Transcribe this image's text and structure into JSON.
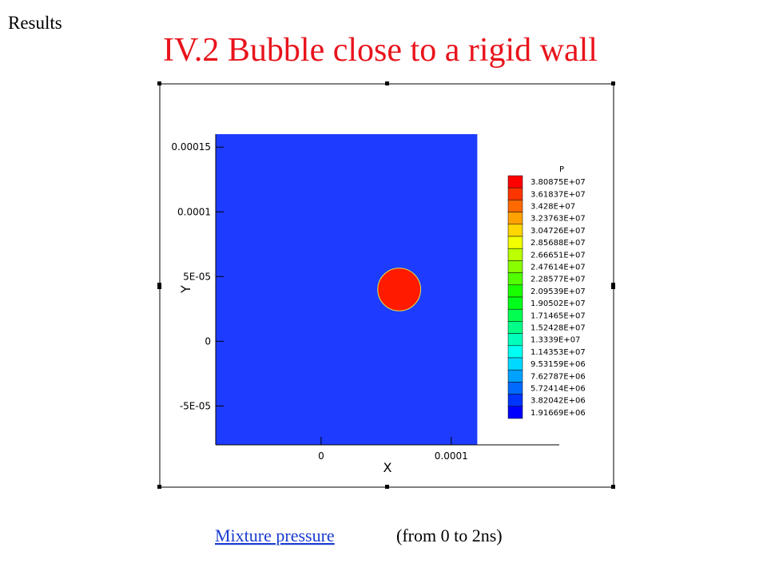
{
  "header": "Results",
  "title": "IV.2 Bubble close to a rigid wall",
  "caption": {
    "link": "Mixture pressure",
    "text": "(from 0 to 2ns)"
  },
  "chart_data": {
    "type": "contour",
    "xlabel": "X",
    "ylabel": "Y",
    "xlim": [
      -8.1e-05,
      0.000183
    ],
    "ylim": [
      -8e-05,
      0.00016
    ],
    "xticks": [
      0,
      0.0001
    ],
    "yticks": [
      {
        "value": -5e-05,
        "label": "-5E-05"
      },
      0,
      {
        "value": 5e-05,
        "label": "5E-05"
      },
      0.0001,
      0.00015
    ],
    "field": {
      "xlim": [
        -8.1e-05,
        0.00012
      ],
      "ylim": [
        -8e-05,
        0.00016
      ],
      "color": "#1e3cff"
    },
    "bubble": {
      "x": 6e-05,
      "y": 4e-05,
      "radius": 1.65e-05,
      "color": "#ff1a00"
    },
    "legend": {
      "title": "P",
      "levels": [
        {
          "value": 38087500,
          "label": "3.80875E+07",
          "color": "#ff0000"
        },
        {
          "value": 36183700,
          "label": "3.61837E+07",
          "color": "#ff3500"
        },
        {
          "value": 34280000,
          "label": "3.428E+07",
          "color": "#ff6a00"
        },
        {
          "value": 32376300,
          "label": "3.23763E+07",
          "color": "#ffa200"
        },
        {
          "value": 30472600,
          "label": "3.04726E+07",
          "color": "#ffd600"
        },
        {
          "value": 28568800,
          "label": "2.85688E+07",
          "color": "#f2ff00"
        },
        {
          "value": 26665100,
          "label": "2.66651E+07",
          "color": "#bbff00"
        },
        {
          "value": 24761400,
          "label": "2.47614E+07",
          "color": "#88ff00"
        },
        {
          "value": 22857700,
          "label": "2.28577E+07",
          "color": "#51ff00"
        },
        {
          "value": 20953900,
          "label": "2.09539E+07",
          "color": "#1aff00"
        },
        {
          "value": 19050200,
          "label": "1.90502E+07",
          "color": "#00ff1a"
        },
        {
          "value": 17146500,
          "label": "1.71465E+07",
          "color": "#00ff51"
        },
        {
          "value": 15242800,
          "label": "1.52428E+07",
          "color": "#00ff88"
        },
        {
          "value": 13339000,
          "label": "1.3339E+07",
          "color": "#00ffbb"
        },
        {
          "value": 11435300,
          "label": "1.14353E+07",
          "color": "#00fff2"
        },
        {
          "value": 9531590,
          "label": "9.53159E+06",
          "color": "#00d9ff"
        },
        {
          "value": 7627870,
          "label": "7.62787E+06",
          "color": "#00a1ff"
        },
        {
          "value": 5724140,
          "label": "5.72414E+06",
          "color": "#006aff"
        },
        {
          "value": 3820420,
          "label": "3.82042E+06",
          "color": "#0035ff"
        },
        {
          "value": 1916690,
          "label": "1.91669E+06",
          "color": "#0000ff"
        }
      ]
    }
  }
}
